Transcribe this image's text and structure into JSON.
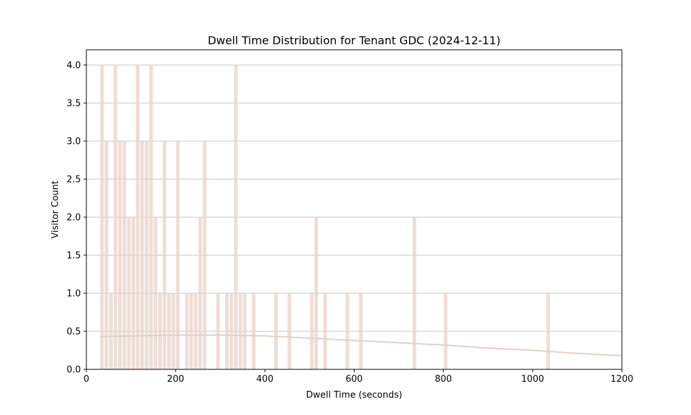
{
  "chart_data": {
    "type": "bar",
    "title": "Dwell Time Distribution for Tenant GDC (2024-12-11)",
    "xlabel": "Dwell Time (seconds)",
    "ylabel": "Visitor Count",
    "xlim": [
      0,
      1200
    ],
    "ylim": [
      0,
      4.2
    ],
    "xticks": [
      0,
      200,
      400,
      600,
      800,
      1000,
      1200
    ],
    "yticks": [
      0.0,
      0.5,
      1.0,
      1.5,
      2.0,
      2.5,
      3.0,
      3.5,
      4.0
    ],
    "grid": "y",
    "bar_color": "#e9d3c8",
    "density_color": "#e2d0c6",
    "bin_width": 10,
    "bins": [
      {
        "x": 35,
        "count": 4
      },
      {
        "x": 45,
        "count": 3
      },
      {
        "x": 55,
        "count": 1
      },
      {
        "x": 65,
        "count": 4
      },
      {
        "x": 75,
        "count": 3
      },
      {
        "x": 85,
        "count": 3
      },
      {
        "x": 95,
        "count": 2
      },
      {
        "x": 105,
        "count": 2
      },
      {
        "x": 115,
        "count": 4
      },
      {
        "x": 125,
        "count": 3
      },
      {
        "x": 135,
        "count": 3
      },
      {
        "x": 145,
        "count": 4
      },
      {
        "x": 155,
        "count": 2
      },
      {
        "x": 165,
        "count": 1
      },
      {
        "x": 175,
        "count": 3
      },
      {
        "x": 185,
        "count": 1
      },
      {
        "x": 195,
        "count": 1
      },
      {
        "x": 205,
        "count": 3
      },
      {
        "x": 225,
        "count": 1
      },
      {
        "x": 235,
        "count": 1
      },
      {
        "x": 245,
        "count": 1
      },
      {
        "x": 255,
        "count": 2
      },
      {
        "x": 265,
        "count": 3
      },
      {
        "x": 295,
        "count": 1
      },
      {
        "x": 315,
        "count": 1
      },
      {
        "x": 325,
        "count": 1
      },
      {
        "x": 335,
        "count": 4
      },
      {
        "x": 345,
        "count": 1
      },
      {
        "x": 355,
        "count": 1
      },
      {
        "x": 375,
        "count": 1
      },
      {
        "x": 425,
        "count": 1
      },
      {
        "x": 455,
        "count": 1
      },
      {
        "x": 505,
        "count": 1
      },
      {
        "x": 515,
        "count": 2
      },
      {
        "x": 535,
        "count": 1
      },
      {
        "x": 585,
        "count": 1
      },
      {
        "x": 615,
        "count": 1
      },
      {
        "x": 735,
        "count": 2
      },
      {
        "x": 805,
        "count": 1
      },
      {
        "x": 1035,
        "count": 1
      }
    ],
    "density_curve": [
      {
        "x": 30,
        "y": 0.43
      },
      {
        "x": 100,
        "y": 0.44
      },
      {
        "x": 200,
        "y": 0.45
      },
      {
        "x": 300,
        "y": 0.45
      },
      {
        "x": 400,
        "y": 0.44
      },
      {
        "x": 500,
        "y": 0.41
      },
      {
        "x": 600,
        "y": 0.38
      },
      {
        "x": 700,
        "y": 0.35
      },
      {
        "x": 800,
        "y": 0.32
      },
      {
        "x": 900,
        "y": 0.28
      },
      {
        "x": 1000,
        "y": 0.25
      },
      {
        "x": 1100,
        "y": 0.21
      },
      {
        "x": 1200,
        "y": 0.18
      }
    ]
  }
}
